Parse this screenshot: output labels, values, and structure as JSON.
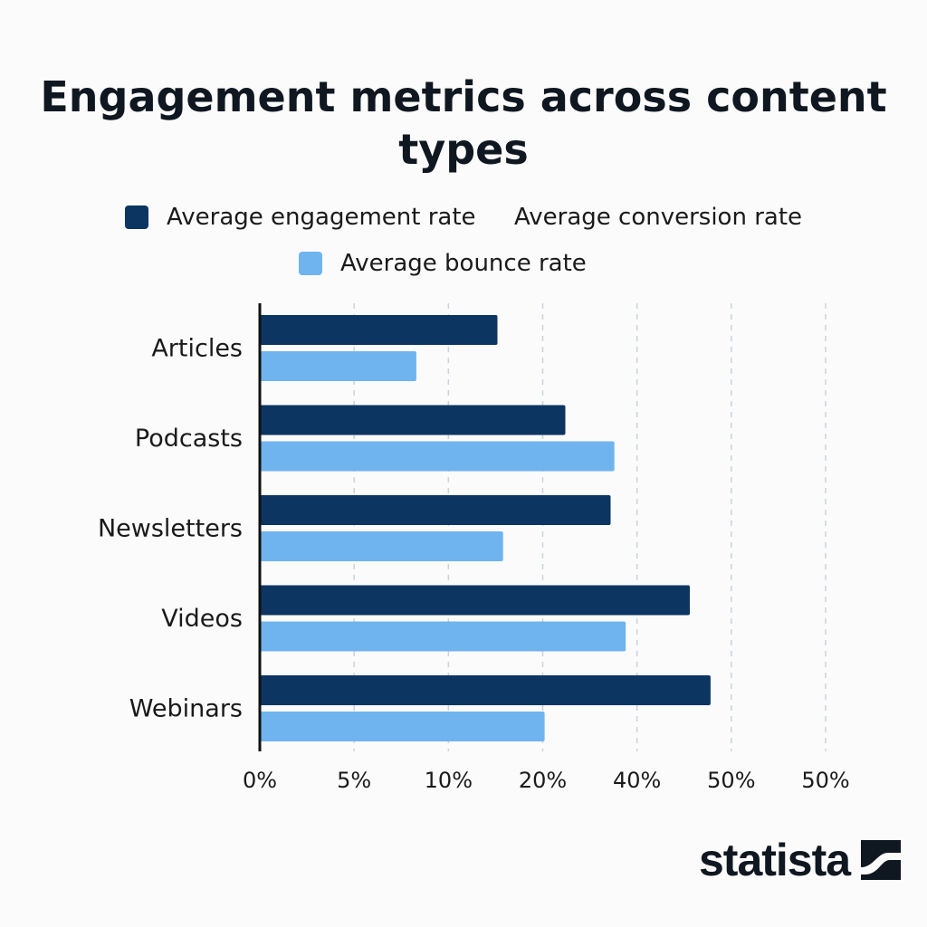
{
  "colors": {
    "engagement": "#0d3562",
    "conversion": "#1e4c82",
    "bounce": "#6fb4ef",
    "grid": "#c9d3dc",
    "axis": "#111111"
  },
  "brand": {
    "name": "statista"
  },
  "chart_data": {
    "type": "bar",
    "orientation": "horizontal",
    "title": "Engagement metrics across content types",
    "categories": [
      "Articles",
      "Podcasts",
      "Newsletters",
      "Videos",
      "Webinars"
    ],
    "x_tick_labels": [
      "0%",
      "5%",
      "10%",
      "20%",
      "40%",
      "50%",
      "50%"
    ],
    "xlim": [
      0,
      30
    ],
    "grid": true,
    "grid_style": "dashed-vertical",
    "legend_placement": "top-center",
    "legend": [
      {
        "name": "Average engagement rate",
        "color": "#0d3562",
        "shown_in_bars": true
      },
      {
        "name": "Average conversion rate",
        "color": "#1e4c82",
        "shown_in_bars": false
      },
      {
        "name": "Average bounce rate",
        "color": "#6fb4ef",
        "shown_in_bars": true
      }
    ],
    "series": [
      {
        "name": "Average engagement rate",
        "values": [
          12.6,
          16.2,
          18.6,
          22.8,
          23.9
        ]
      },
      {
        "name": "Average bounce rate",
        "values": [
          8.3,
          18.8,
          12.9,
          19.4,
          15.1
        ]
      }
    ]
  }
}
